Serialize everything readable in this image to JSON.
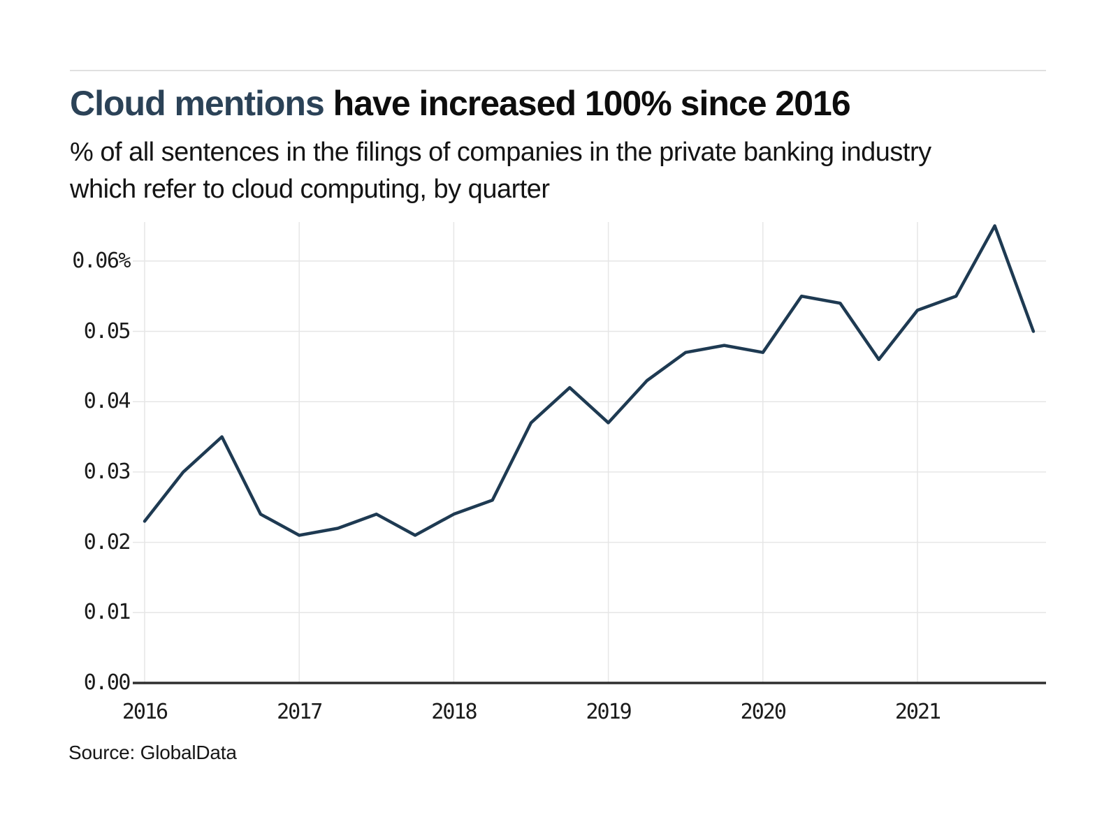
{
  "header": {
    "title_highlight": "Cloud mentions",
    "title_rest": " have increased 100% since 2016",
    "subtitle_line1": "% of all sentences in the filings of companies in the private banking industry",
    "subtitle_line2": "which refer to cloud computing, by quarter"
  },
  "footer": {
    "source": "Source: GlobalData"
  },
  "colors": {
    "title_highlight": "#2b4257",
    "line": "#1e3a52",
    "gridline": "#e6e6e6",
    "axis": "#2e2e2e"
  },
  "chart_data": {
    "type": "line",
    "title": "Cloud mentions have increased 100% since 2016",
    "subtitle": "% of all sentences in the filings of companies in the private banking industry which refer to cloud computing, by quarter",
    "unit": "%",
    "categories": [
      "2016 Q1",
      "2016 Q2",
      "2016 Q3",
      "2016 Q4",
      "2017 Q1",
      "2017 Q2",
      "2017 Q3",
      "2017 Q4",
      "2018 Q1",
      "2018 Q2",
      "2018 Q3",
      "2018 Q4",
      "2019 Q1",
      "2019 Q2",
      "2019 Q3",
      "2019 Q4",
      "2020 Q1",
      "2020 Q2",
      "2020 Q3",
      "2020 Q4",
      "2021 Q1",
      "2021 Q2",
      "2021 Q3",
      "2021 Q4"
    ],
    "values": [
      0.023,
      0.03,
      0.035,
      0.024,
      0.021,
      0.022,
      0.024,
      0.021,
      0.024,
      0.026,
      0.037,
      0.042,
      0.037,
      0.043,
      0.047,
      0.048,
      0.047,
      0.055,
      0.054,
      0.046,
      0.053,
      0.055,
      0.065,
      0.05
    ],
    "ylim": [
      0.0,
      0.066
    ],
    "yticks": [
      "0.06%",
      "0.05",
      "0.04",
      "0.03",
      "0.02",
      "0.01",
      "0.00"
    ],
    "ytick_values": [
      0.06,
      0.05,
      0.04,
      0.03,
      0.02,
      0.01,
      0.0
    ],
    "xticks": [
      "2016",
      "2017",
      "2018",
      "2019",
      "2020",
      "2021"
    ],
    "grid": true,
    "legend": false,
    "xlabel": "",
    "ylabel": ""
  }
}
